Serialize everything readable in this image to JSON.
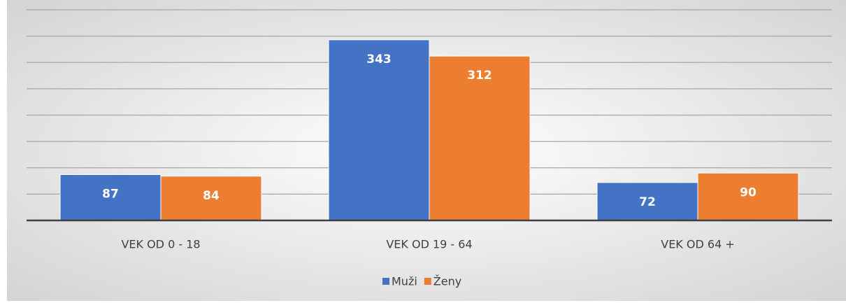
{
  "chart_data": {
    "type": "bar",
    "categories": [
      "VEK OD 0 - 18",
      "VEK OD 19 - 64",
      "VEK OD 64 +"
    ],
    "series": [
      {
        "name": "Muži",
        "color": "#4472c4",
        "values": [
          87,
          343,
          72
        ]
      },
      {
        "name": "Ženy",
        "color": "#ed7d31",
        "values": [
          84,
          312,
          90
        ]
      }
    ],
    "ylim": [
      0,
      400
    ],
    "yticks": [
      0,
      50,
      100,
      150,
      200,
      250,
      300,
      350,
      400
    ],
    "grid": true,
    "legend": "bottom"
  }
}
